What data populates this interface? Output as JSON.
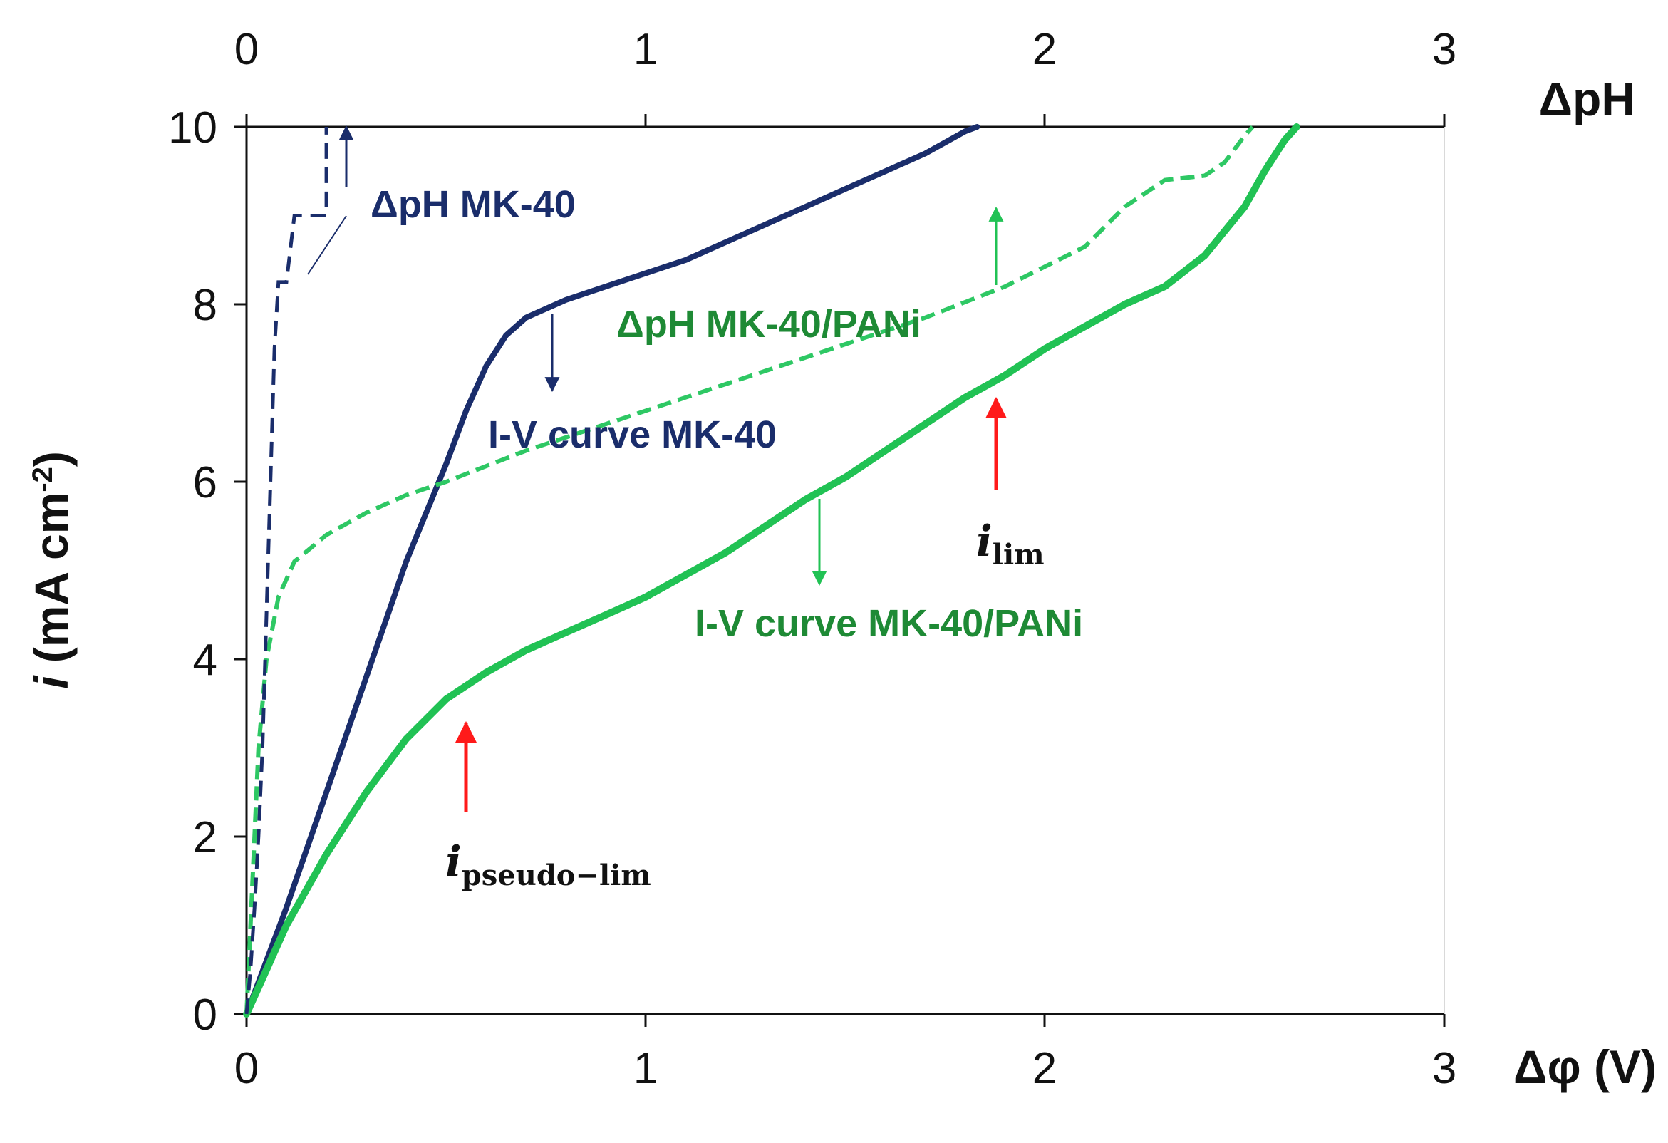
{
  "chart_data": {
    "type": "line",
    "title": "",
    "xlabel": "Δφ (V)",
    "x2label": "ΔpH",
    "ylabel_italic": "i",
    "ylabel_main": " (mA cm",
    "ylabel_sup": "-2",
    "ylabel_close": ")",
    "xlim": [
      0,
      3
    ],
    "x2lim": [
      0,
      3
    ],
    "ylim": [
      0,
      10
    ],
    "xticks": [
      "0",
      "1",
      "2",
      "3"
    ],
    "x2ticks": [
      "0",
      "1",
      "2",
      "3"
    ],
    "yticks": [
      "0",
      "2",
      "4",
      "6",
      "8",
      "10"
    ],
    "grid": false,
    "colors": {
      "navy": "#1a2d6b",
      "green": "#21c254",
      "green_dashed": "#2ec864",
      "green_label": "#1e8a35",
      "red": "#ff1a1a"
    },
    "series": [
      {
        "name": "I-V curve MK-40",
        "axis": "bottom",
        "style": "solid",
        "color": "#1a2d6b",
        "x": [
          0,
          0.1,
          0.2,
          0.3,
          0.4,
          0.5,
          0.55,
          0.6,
          0.65,
          0.7,
          0.75,
          0.8,
          0.9,
          1.0,
          1.1,
          1.2,
          1.3,
          1.4,
          1.5,
          1.6,
          1.7,
          1.8,
          1.83
        ],
        "y": [
          0,
          1.2,
          2.5,
          3.8,
          5.1,
          6.2,
          6.8,
          7.3,
          7.65,
          7.85,
          7.95,
          8.05,
          8.2,
          8.35,
          8.5,
          8.7,
          8.9,
          9.1,
          9.3,
          9.5,
          9.7,
          9.95,
          10
        ]
      },
      {
        "name": "I-V curve MK-40/PANi",
        "axis": "bottom",
        "style": "solid",
        "color": "#21c254",
        "x": [
          0,
          0.05,
          0.1,
          0.2,
          0.3,
          0.4,
          0.5,
          0.6,
          0.7,
          0.8,
          0.9,
          1.0,
          1.1,
          1.2,
          1.3,
          1.4,
          1.5,
          1.6,
          1.7,
          1.8,
          1.9,
          2.0,
          2.1,
          2.2,
          2.3,
          2.4,
          2.5,
          2.55,
          2.6,
          2.63
        ],
        "y": [
          0,
          0.5,
          1.0,
          1.8,
          2.5,
          3.1,
          3.55,
          3.85,
          4.1,
          4.3,
          4.5,
          4.7,
          4.95,
          5.2,
          5.5,
          5.8,
          6.05,
          6.35,
          6.65,
          6.95,
          7.2,
          7.5,
          7.75,
          8.0,
          8.2,
          8.55,
          9.1,
          9.5,
          9.85,
          10
        ]
      },
      {
        "name": "ΔpH MK-40/PANi",
        "axis": "top",
        "style": "dashed",
        "color": "#2ec864",
        "x": [
          0,
          0.01,
          0.02,
          0.03,
          0.05,
          0.08,
          0.12,
          0.2,
          0.3,
          0.4,
          0.5,
          0.7,
          0.9,
          1.1,
          1.3,
          1.5,
          1.7,
          1.9,
          2.1,
          2.2,
          2.3,
          2.4,
          2.45,
          2.5,
          2.52
        ],
        "y": [
          0,
          1.0,
          2.0,
          3.0,
          4.0,
          4.7,
          5.1,
          5.4,
          5.65,
          5.85,
          6.0,
          6.35,
          6.65,
          6.95,
          7.25,
          7.55,
          7.85,
          8.2,
          8.65,
          9.1,
          9.4,
          9.45,
          9.6,
          9.9,
          10
        ]
      },
      {
        "name": "ΔpH MK-40",
        "axis": "top",
        "style": "dashed",
        "color": "#1a2d6b",
        "x": [
          0,
          0.01,
          0.02,
          0.03,
          0.04,
          0.05,
          0.06,
          0.07,
          0.08,
          0.1,
          0.12,
          0.15,
          0.18,
          0.2,
          0.2
        ],
        "y": [
          0,
          0.5,
          1.2,
          2.0,
          3.0,
          4.5,
          6.0,
          7.5,
          8.25,
          8.25,
          9.0,
          9.0,
          9.0,
          9.0,
          10
        ]
      }
    ],
    "annotations": {
      "dph_mk40": "ΔpH MK-40",
      "iv_mk40": "I-V curve MK-40",
      "dph_pani": "ΔpH MK-40/PANi",
      "iv_pani": "I-V curve MK-40/PANi",
      "ilim_main": "i",
      "ilim_sub": "lim",
      "ipseudo_main": "i",
      "ipseudo_sub": "pseudo−lim"
    }
  }
}
